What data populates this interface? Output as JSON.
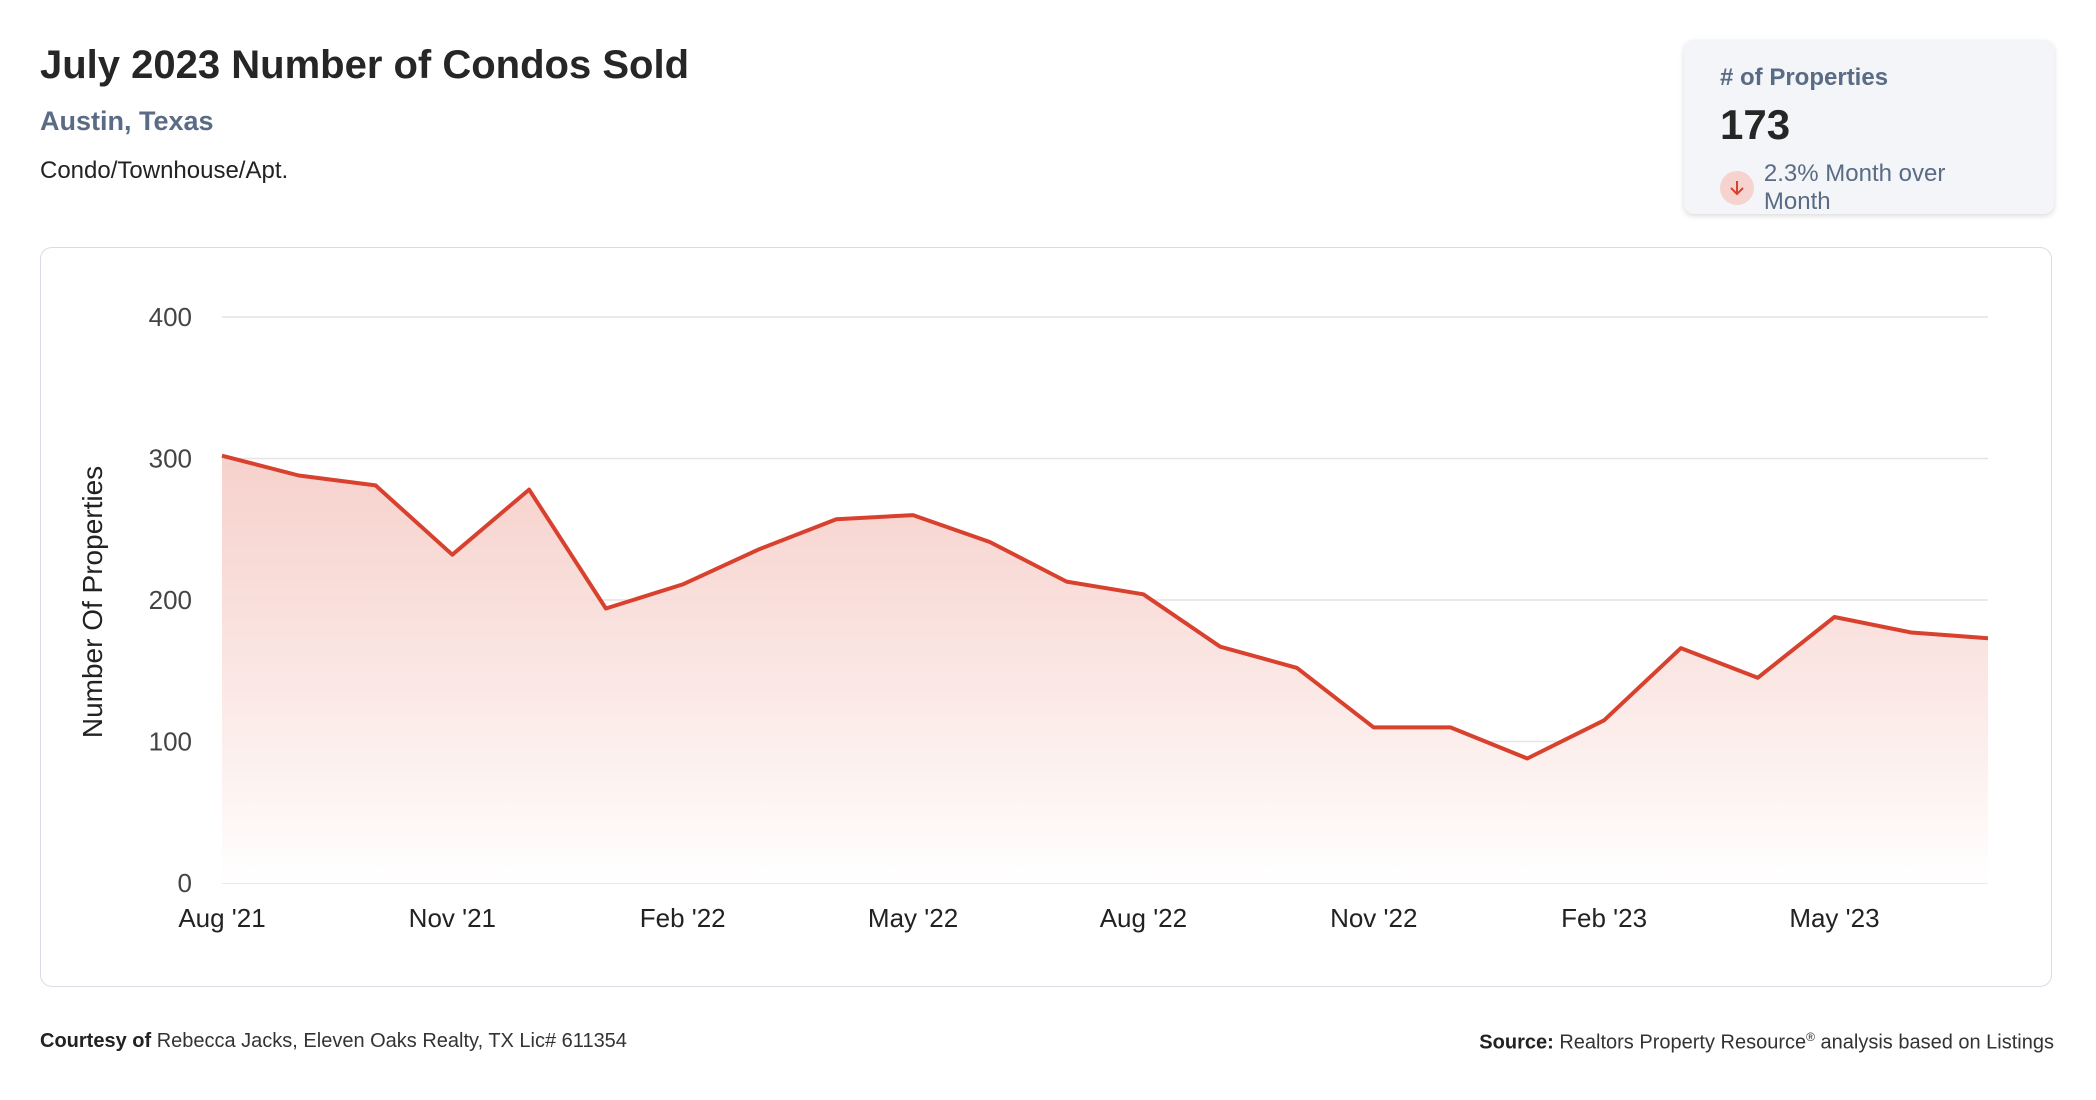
{
  "header": {
    "title": "July 2023 Number of Condos Sold",
    "location": "Austin, Texas",
    "property_type": "Condo/Townhouse/Apt."
  },
  "kpi": {
    "label": "# of Properties",
    "value": "173",
    "change_text": "2.3% Month over Month",
    "direction": "down",
    "icon": "arrow-down-icon"
  },
  "colors": {
    "line": "#d9412f",
    "area_top": "#f5c9c3",
    "grid": "#e4e4e4",
    "accent_text": "#5a6b85"
  },
  "chart_data": {
    "type": "area",
    "ylabel": "Number Of Properties",
    "ylim": [
      0,
      400
    ],
    "yticks": [
      0,
      100,
      200,
      300,
      400
    ],
    "xticks": [
      "Aug '21",
      "Nov '21",
      "Feb '22",
      "May '22",
      "Aug '22",
      "Nov '22",
      "Feb '23",
      "May '23"
    ],
    "x": [
      "Aug '21",
      "Sep '21",
      "Oct '21",
      "Nov '21",
      "Dec '21",
      "Jan '22",
      "Feb '22",
      "Mar '22",
      "Apr '22",
      "May '22",
      "Jun '22",
      "Jul '22",
      "Aug '22",
      "Sep '22",
      "Oct '22",
      "Nov '22",
      "Dec '22",
      "Jan '23",
      "Feb '23",
      "Mar '23",
      "Apr '23",
      "May '23",
      "Jun '23",
      "Jul '23"
    ],
    "series": [
      {
        "values": [
          302,
          288,
          281,
          232,
          278,
          194,
          211,
          236,
          257,
          260,
          241,
          213,
          204,
          167,
          152,
          110,
          110,
          88,
          115,
          166,
          145,
          188,
          177,
          173
        ]
      }
    ],
    "grid": true,
    "legend": "none"
  },
  "footer": {
    "courtesy_label": "Courtesy of",
    "courtesy_text": "Rebecca Jacks, Eleven Oaks Realty, TX Lic# 611354",
    "source_label": "Source:",
    "source_text_1": "Realtors Property Resource",
    "source_reg": "®",
    "source_text_2": " analysis based on Listings"
  }
}
